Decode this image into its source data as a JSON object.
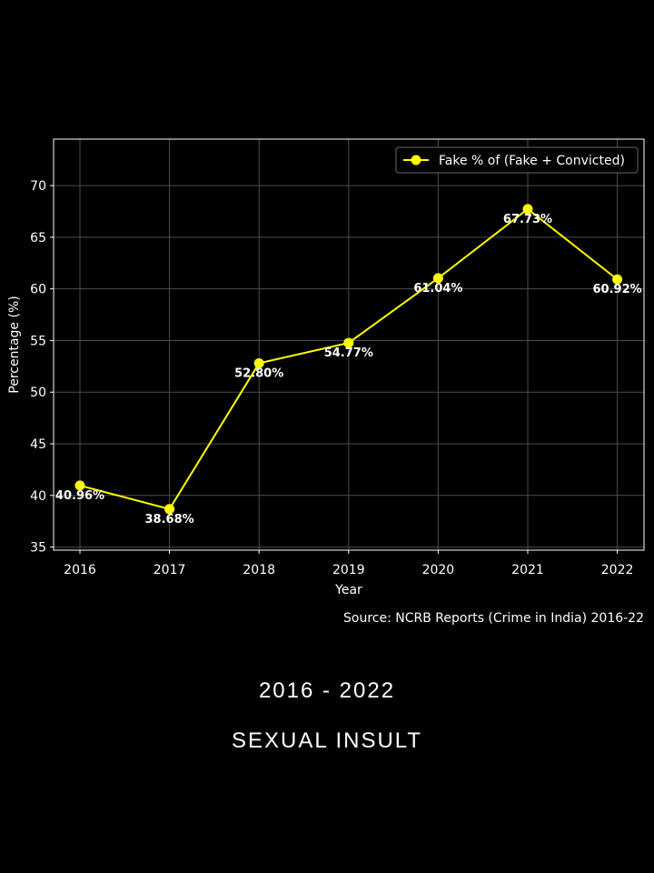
{
  "chart_data": {
    "type": "line",
    "x": [
      "2016",
      "2017",
      "2018",
      "2019",
      "2020",
      "2021",
      "2022"
    ],
    "series": [
      {
        "name": "Fake % of (Fake + Convicted)",
        "values": [
          40.96,
          38.68,
          52.8,
          54.77,
          61.04,
          67.73,
          60.92
        ],
        "labels": [
          "40.96%",
          "38.68%",
          "52.80%",
          "54.77%",
          "61.04%",
          "67.73%",
          "60.92%"
        ],
        "color": "#ffff00"
      }
    ],
    "xlabel": "Year",
    "ylabel": "Percentage (%)",
    "ylim": [
      34.7,
      74.5
    ],
    "yticks": [
      35,
      40,
      45,
      50,
      55,
      60,
      65,
      70
    ],
    "grid": true,
    "legend": "top-right",
    "source": "Source: NCRB Reports (Crime in India) 2016-22"
  },
  "captions": {
    "years": "2016 - 2022",
    "topic": "SEXUAL INSULT"
  },
  "colors": {
    "background": "#000000",
    "line": "#ffff00",
    "grid": "#4d4d4d",
    "text": "#ffffff"
  }
}
